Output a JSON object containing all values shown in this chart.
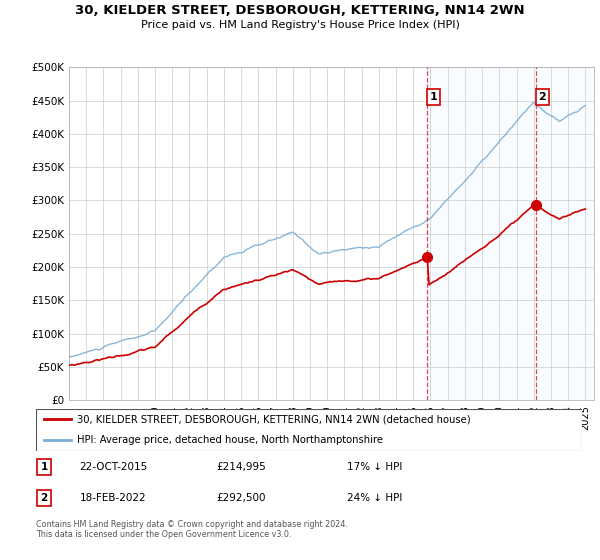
{
  "title": "30, KIELDER STREET, DESBOROUGH, KETTERING, NN14 2WN",
  "subtitle": "Price paid vs. HM Land Registry's House Price Index (HPI)",
  "ylim": [
    0,
    500000
  ],
  "yticks": [
    0,
    50000,
    100000,
    150000,
    200000,
    250000,
    300000,
    350000,
    400000,
    450000,
    500000
  ],
  "ytick_labels": [
    "£0",
    "£50K",
    "£100K",
    "£150K",
    "£200K",
    "£250K",
    "£300K",
    "£350K",
    "£400K",
    "£450K",
    "£500K"
  ],
  "xlim_start": 1995,
  "xlim_end": 2025.5,
  "hpi_color": "#7bafd4",
  "price_color": "#cc0000",
  "point1_x": 2015.8,
  "point1_y": 214995,
  "point2_x": 2022.12,
  "point2_y": 292500,
  "point1_date": "22-OCT-2015",
  "point1_price": "£214,995",
  "point1_hpi": "17% ↓ HPI",
  "point2_date": "18-FEB-2022",
  "point2_price": "£292,500",
  "point2_hpi": "24% ↓ HPI",
  "legend_line1": "30, KIELDER STREET, DESBOROUGH, KETTERING, NN14 2WN (detached house)",
  "legend_line2": "HPI: Average price, detached house, North Northamptonshire",
  "footer": "Contains HM Land Registry data © Crown copyright and database right 2024.\nThis data is licensed under the Open Government Licence v3.0.",
  "bg_highlight_color": "#ddeeff",
  "vline_color": "#cc0000"
}
